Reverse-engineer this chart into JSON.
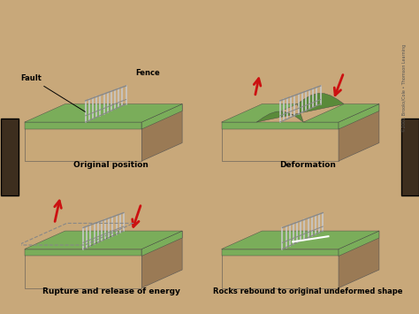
{
  "background_outer": "#c8a87a",
  "background_inner": "#f0eeea",
  "wood_color": "#3d2e1e",
  "ground_top_color": "#7aad5a",
  "ground_top_dark": "#5a8a3a",
  "ground_rock_color": "#b8956a",
  "ground_rock_dark": "#9a7a55",
  "ground_rock_front": "#c8a878",
  "fence_color": "#c8c8c8",
  "fault_color": "#888888",
  "arrow_color": "#cc1111",
  "caption_fontsize": 7,
  "label_fontsize": 6.5,
  "captions": [
    "Original position",
    "Deformation",
    "Rupture and release of energy",
    "Rocks rebound to original undeformed shape"
  ]
}
